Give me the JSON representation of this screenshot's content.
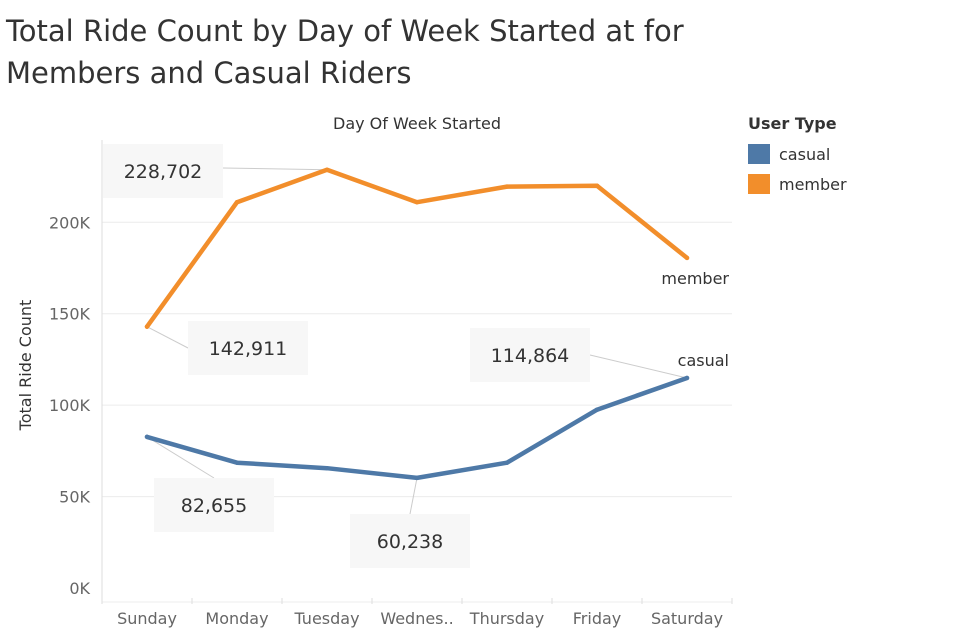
{
  "title": "Total Ride Count by Day of Week Started at for Members and Casual Riders",
  "legend": {
    "title": "User Type",
    "items": [
      {
        "label": "casual",
        "color": "#4e79a7"
      },
      {
        "label": "member",
        "color": "#f28e2b"
      }
    ]
  },
  "chart_data": {
    "type": "line",
    "title": "Total Ride Count by Day of Week Started at for Members and Casual Riders",
    "xlabel_top": "Day Of Week Started",
    "xlabel": "",
    "ylabel": "Total Ride Count",
    "categories": [
      "Sunday",
      "Monday",
      "Tuesday",
      "Wednes..",
      "Thursday",
      "Friday",
      "Saturday"
    ],
    "yticks": [
      {
        "value": 0,
        "label": "0K"
      },
      {
        "value": 50000,
        "label": "50K"
      },
      {
        "value": 100000,
        "label": "100K"
      },
      {
        "value": 150000,
        "label": "150K"
      },
      {
        "value": 200000,
        "label": "200K"
      }
    ],
    "ylim": [
      0,
      245000
    ],
    "grid": true,
    "series": [
      {
        "name": "member",
        "color": "#f28e2b",
        "end_label": "member",
        "values": [
          142911,
          211000,
          228702,
          211000,
          219500,
          220000,
          180500
        ]
      },
      {
        "name": "casual",
        "color": "#4e79a7",
        "end_label": "casual",
        "values": [
          82655,
          68500,
          65500,
          60238,
          68500,
          97500,
          114864
        ]
      }
    ],
    "annotations": [
      {
        "series": "member",
        "index": 2,
        "label": "228,702"
      },
      {
        "series": "member",
        "index": 0,
        "label": "142,911"
      },
      {
        "series": "casual",
        "index": 6,
        "label": "114,864"
      },
      {
        "series": "casual",
        "index": 0,
        "label": "82,655"
      },
      {
        "series": "casual",
        "index": 3,
        "label": "60,238"
      }
    ]
  }
}
